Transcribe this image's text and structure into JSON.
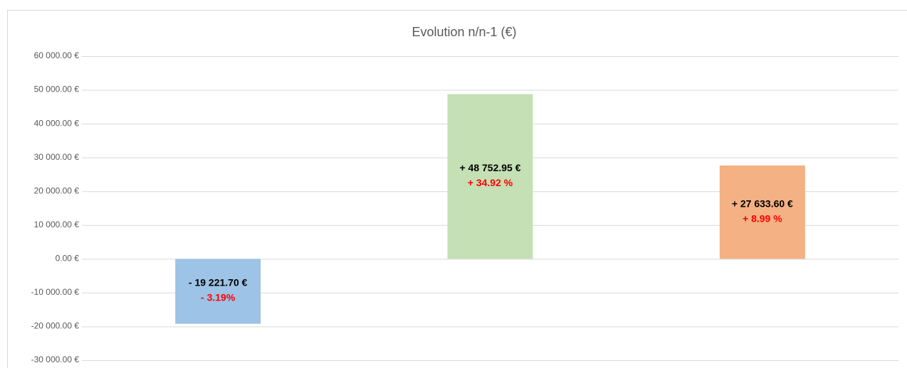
{
  "chart_data": {
    "type": "bar",
    "title": "Evolution n/n-1 (€)",
    "categories": [
      null,
      null,
      null
    ],
    "values": [
      -19221.7,
      48752.95,
      27633.6
    ],
    "value_labels": [
      "- 19 221.70 €",
      "+ 48 752.95 €",
      "+ 27 633.60 €"
    ],
    "percentages": [
      -3.19,
      34.92,
      8.99
    ],
    "percentage_labels": [
      "- 3.19%",
      "+ 34.92 %",
      "+ 8.99 %"
    ],
    "colors": [
      "#9dc3e6",
      "#c5e0b4",
      "#f4b183"
    ],
    "ylim": [
      -30000,
      60000
    ],
    "yticks": [
      {
        "value": -30000,
        "label": "-30 000.00 €"
      },
      {
        "value": -20000,
        "label": "-20 000.00 €"
      },
      {
        "value": -10000,
        "label": "-10 000.00 €"
      },
      {
        "value": 0,
        "label": "0.00 €"
      },
      {
        "value": 10000,
        "label": "10 000.00 €"
      },
      {
        "value": 20000,
        "label": "20 000.00 €"
      },
      {
        "value": 30000,
        "label": "30 000.00 €"
      },
      {
        "value": 40000,
        "label": "40 000.00 €"
      },
      {
        "value": 50000,
        "label": "50 000.00 €"
      },
      {
        "value": 60000,
        "label": "60 000.00 €"
      }
    ],
    "grid": true
  }
}
